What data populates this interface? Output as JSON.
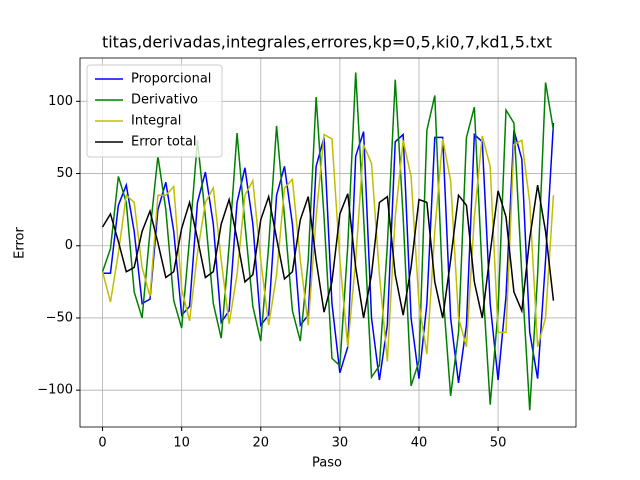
{
  "chart_data": {
    "type": "line",
    "title": "titas,derivadas,integrales,errores,kp=0,5,ki0,7,kd1,5.txt",
    "x_label": "Paso",
    "y_label": "Error",
    "x": [
      0,
      1,
      2,
      3,
      4,
      5,
      6,
      7,
      8,
      9,
      10,
      11,
      12,
      13,
      14,
      15,
      16,
      17,
      18,
      19,
      20,
      21,
      22,
      23,
      24,
      25,
      26,
      27,
      28,
      29,
      30,
      31,
      32,
      33,
      34,
      35,
      36,
      37,
      38,
      39,
      40,
      41,
      42,
      43,
      44,
      45,
      46,
      47,
      48,
      49,
      50,
      51,
      52,
      53,
      54,
      55,
      56,
      57
    ],
    "series": [
      {
        "name": "Proporcional",
        "color": "#0000ff",
        "values": [
          -19,
          -19,
          28,
          42,
          10,
          -40,
          -37,
          25,
          44,
          10,
          -48,
          -42,
          30,
          51,
          15,
          -53,
          -45,
          30,
          54,
          15,
          -55,
          -48,
          35,
          55,
          15,
          -55,
          -48,
          55,
          75,
          -40,
          -88,
          -70,
          62,
          79,
          -50,
          -93,
          -55,
          72,
          77,
          -50,
          -92,
          -40,
          75,
          75,
          -50,
          -95,
          -55,
          77,
          72,
          -40,
          -93,
          -35,
          80,
          60,
          -60,
          -92,
          -10,
          85
        ]
      },
      {
        "name": "Derivativo",
        "color": "#008000",
        "values": [
          -18,
          -2,
          48,
          30,
          -32,
          -50,
          10,
          62,
          25,
          -38,
          -57,
          5,
          73,
          20,
          -40,
          -64,
          0,
          78,
          15,
          -42,
          -66,
          0,
          83,
          20,
          -45,
          -66,
          -10,
          103,
          20,
          -78,
          -83,
          0,
          120,
          20,
          -91,
          -83,
          0,
          115,
          20,
          -97,
          -80,
          80,
          104,
          -30,
          -104,
          -60,
          75,
          96,
          -20,
          -110,
          -45,
          94,
          85,
          -20,
          -114,
          -20,
          113,
          80
        ]
      },
      {
        "name": "Integral",
        "color": "#bfbf00",
        "values": [
          -18,
          -39,
          -5,
          35,
          30,
          -15,
          -35,
          35,
          35,
          41,
          -30,
          -52,
          -5,
          30,
          40,
          -10,
          -54,
          -20,
          35,
          45,
          -10,
          -55,
          -20,
          40,
          46,
          -10,
          -55,
          20,
          77,
          74,
          -10,
          -70,
          -10,
          70,
          57,
          -20,
          -80,
          20,
          73,
          48,
          -40,
          -75,
          10,
          74,
          45,
          -50,
          -70,
          20,
          76,
          55,
          -60,
          -60,
          70,
          73,
          30,
          -70,
          -50,
          35
        ]
      },
      {
        "name": "Error total",
        "color": "#000000",
        "values": [
          13,
          22,
          3,
          -18,
          -15,
          10,
          24,
          2,
          -22,
          -18,
          12,
          30,
          5,
          -22,
          -18,
          15,
          32,
          5,
          -25,
          -20,
          18,
          34,
          5,
          -23,
          -18,
          18,
          34,
          -10,
          -46,
          -25,
          22,
          36,
          -15,
          -50,
          -20,
          30,
          34,
          -20,
          -48,
          -15,
          32,
          30,
          -25,
          -50,
          -10,
          35,
          28,
          -25,
          -50,
          -5,
          38,
          20,
          -32,
          -45,
          5,
          42,
          10,
          -38
        ]
      }
    ],
    "xlim": [
      -2.85,
      59.85
    ],
    "ylim": [
      -125.5,
      130
    ],
    "xticks": [
      0,
      10,
      20,
      30,
      40,
      50
    ],
    "yticks": [
      {
        "value": -100,
        "label": "−100"
      },
      {
        "value": -50,
        "label": "−50"
      },
      0,
      50,
      100
    ],
    "grid": true,
    "legend": "upper left"
  }
}
